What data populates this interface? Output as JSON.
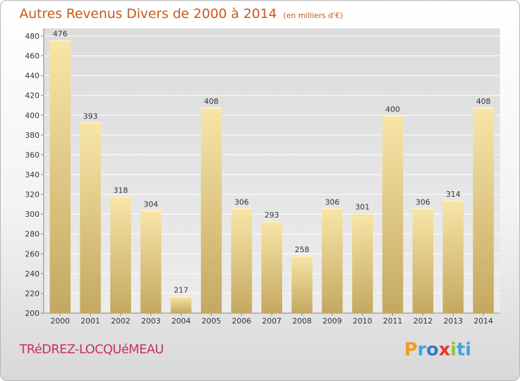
{
  "title": {
    "main": "Autres Revenus Divers de 2000 à 2014",
    "unit": "(en milliers d'€)"
  },
  "commune": "TRéDREZ-LOCQUéMEAU",
  "logo": [
    "P",
    "r",
    "o",
    "x",
    "i",
    "ti"
  ],
  "colors": {
    "title": "#c65a18",
    "commune": "#c5306e",
    "bar_light": "#f7e3a2",
    "bar_dark": "#c6aa61",
    "grid": "#ffffff",
    "plot_bg": "#e8e8e8"
  },
  "chart_data": {
    "type": "bar",
    "categories": [
      "2000",
      "2001",
      "2002",
      "2003",
      "2004",
      "2005",
      "2006",
      "2007",
      "2008",
      "2009",
      "2010",
      "2011",
      "2012",
      "2013",
      "2014"
    ],
    "values": [
      476,
      393,
      318,
      304,
      217,
      408,
      306,
      293,
      258,
      306,
      301,
      400,
      306,
      314,
      408
    ],
    "ylim": [
      200,
      480
    ],
    "yticks": [
      200,
      220,
      240,
      260,
      280,
      300,
      320,
      340,
      360,
      380,
      400,
      420,
      440,
      460,
      480
    ],
    "grid": true
  }
}
